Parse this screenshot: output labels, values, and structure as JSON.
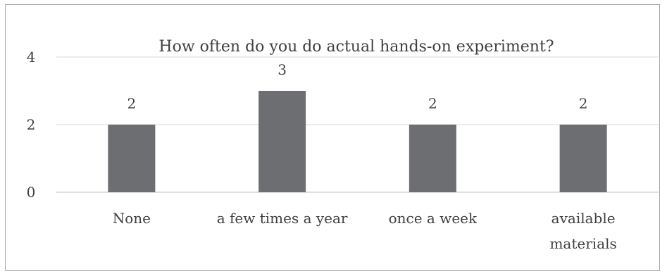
{
  "chart_data": {
    "type": "bar",
    "title": "How often do you do actual hands-on experiment?",
    "categories": [
      [
        "None"
      ],
      [
        "a few times a year"
      ],
      [
        "once a week"
      ],
      [
        "available",
        "materials"
      ]
    ],
    "values": [
      2,
      3,
      2,
      2
    ],
    "data_labels": [
      "2",
      "3",
      "2",
      "2"
    ],
    "ylim": [
      0,
      4
    ],
    "yticks": [
      0,
      2,
      4
    ],
    "ytick_labels": [
      "0",
      "2",
      "4"
    ],
    "grid": true,
    "legend": "none",
    "xlabel": "",
    "ylabel": "",
    "colors": {
      "bar": "#6d6e71",
      "grid": "#d9d9d9",
      "text": "#404040"
    }
  }
}
